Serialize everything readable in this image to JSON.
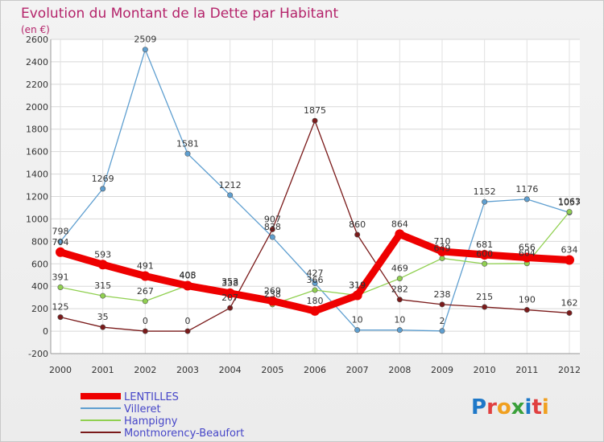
{
  "chart_data": {
    "type": "line",
    "title": "Evolution du Montant de la Dette par Habitant",
    "subtitle": "(en €)",
    "x": [
      "2000",
      "2001",
      "2002",
      "2003",
      "2004",
      "2005",
      "2006",
      "2007",
      "2008",
      "2009",
      "2010",
      "2011",
      "2012"
    ],
    "y_ticks": [
      "-200",
      "0",
      "200",
      "400",
      "600",
      "800",
      "1000",
      "1200",
      "1400",
      "1600",
      "1800",
      "2000",
      "2200",
      "2400",
      "2600"
    ],
    "ylim": [
      -200,
      2600
    ],
    "grid": true,
    "series": [
      {
        "name": "LENTILLES",
        "color": "#ee0000",
        "values": [
          704,
          593,
          491,
          405,
          338,
          269,
          180,
          319,
          864,
          710,
          681,
          656,
          634
        ]
      },
      {
        "name": "Villeret",
        "color": "#5f9fd0",
        "values": [
          798,
          1269,
          2509,
          1581,
          1212,
          838,
          427,
          10,
          10,
          2,
          1152,
          1176,
          1057
        ]
      },
      {
        "name": "Hampigny",
        "color": "#90d050",
        "values": [
          391,
          315,
          267,
          408,
          353,
          238,
          366,
          319,
          469,
          649,
          600,
          604,
          1063
        ]
      },
      {
        "name": "Montmorency-Beaufort",
        "color": "#7a1a1a",
        "values": [
          125,
          35,
          0,
          0,
          207,
          907,
          1875,
          860,
          282,
          238,
          215,
          190,
          162
        ]
      }
    ],
    "legend_position": "bottom-left"
  },
  "logo": {
    "text": "Proxiti"
  }
}
